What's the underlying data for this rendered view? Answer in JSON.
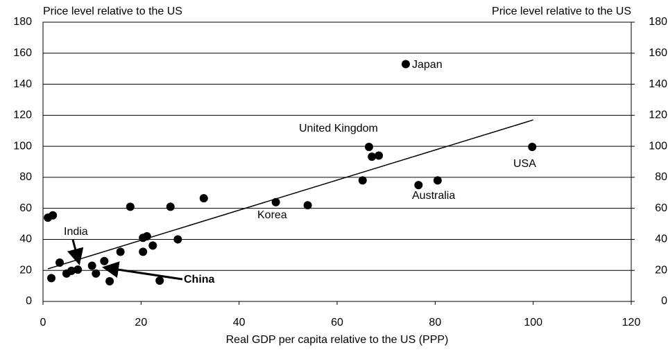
{
  "chart_data": {
    "type": "scatter",
    "y_label": "Price level relative to the US",
    "y2_label": "Price level relative to the US",
    "x_label": "Real GDP per capita relative to the US (PPP)",
    "xlim": [
      0,
      120
    ],
    "xticks": [
      0,
      20,
      40,
      60,
      80,
      100,
      120
    ],
    "ylim": [
      0,
      180
    ],
    "yticks": [
      0,
      20,
      40,
      60,
      80,
      100,
      120,
      140,
      160,
      180
    ],
    "y2lim": [
      0,
      180
    ],
    "y2ticks": [
      0,
      20,
      40,
      60,
      80,
      100,
      120,
      140,
      160,
      180
    ],
    "grid": true,
    "color": "#000000",
    "x": [
      1,
      2,
      1.7,
      3.4,
      4.8,
      5.8,
      7.1,
      10,
      10.8,
      12.5,
      13.6,
      15.8,
      17.8,
      20.4,
      21.2,
      20.4,
      22.4,
      23.8,
      26,
      27.5,
      32.8,
      47.5,
      54,
      65.2,
      66.5,
      67.1,
      68.5,
      74,
      76.6,
      80.5,
      99.8
    ],
    "values": [
      54,
      55.5,
      15,
      25,
      18,
      19.7,
      20.5,
      23,
      18,
      26,
      13,
      32,
      61,
      41,
      42,
      32,
      36,
      13.4,
      61,
      40,
      66.5,
      64,
      62,
      78,
      99.6,
      93.3,
      94,
      153,
      75,
      78,
      99.6
    ],
    "trend": {
      "x": [
        1,
        100
      ],
      "values": [
        21,
        117
      ]
    },
    "annotations": [
      "Japan",
      "United Kingdom",
      "USA",
      "Australia",
      "Korea",
      "India",
      "China"
    ]
  }
}
